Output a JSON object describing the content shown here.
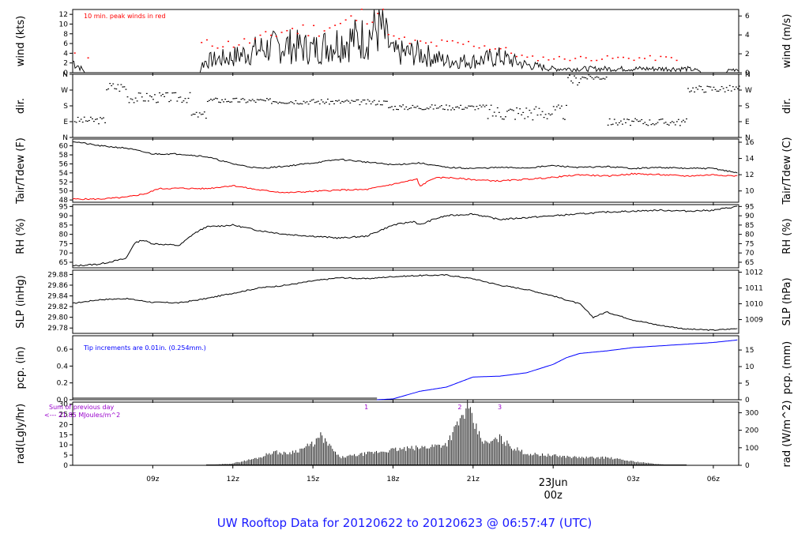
{
  "title": "UW Rooftop Data for 20120622  to  20120623 @ 06:57:47  (UTC)",
  "x_ticks": [
    "09z",
    "12z",
    "15z",
    "18z",
    "21z",
    "00z",
    "03z",
    "06z"
  ],
  "date_marker": {
    "day": "23Jun",
    "hour": "00z",
    "color": "#cc0000"
  },
  "colors": {
    "black": "#000000",
    "red": "#ff0000",
    "blue": "#0000ff",
    "purple": "#9900cc",
    "title": "#1a1aff"
  },
  "panels": {
    "wind": {
      "ylabel_left": "wind (kts)",
      "ylabel_right": "wind (m/s)",
      "note": "10 min. peak winds in red",
      "left_ticks": [
        "0",
        "2",
        "4",
        "6",
        "8",
        "10",
        "12"
      ],
      "right_ticks": [
        "0",
        "2",
        "4",
        "6"
      ]
    },
    "dir": {
      "ylabel_left": "dir.",
      "ylabel_right": "dir.",
      "ticks": [
        "N",
        "E",
        "S",
        "W",
        "N"
      ]
    },
    "temp": {
      "ylabel_left": "Tair/Tdew (F)",
      "ylabel_right": "Tair/Tdew (C)",
      "left_ticks": [
        "48",
        "50",
        "52",
        "54",
        "56",
        "58",
        "60"
      ],
      "right_ticks": [
        "10",
        "12",
        "14",
        "16"
      ]
    },
    "rh": {
      "ylabel_left": "RH (%)",
      "ylabel_right": "RH (%)",
      "left_ticks": [
        "65",
        "70",
        "75",
        "80",
        "85",
        "90",
        "95"
      ],
      "right_ticks": [
        "65",
        "70",
        "75",
        "80",
        "85",
        "90",
        "95"
      ]
    },
    "slp": {
      "ylabel_left": "SLP (inHg)",
      "ylabel_right": "SLP (hPa)",
      "left_ticks": [
        "29.78",
        "29.80",
        "29.82",
        "29.84",
        "29.86",
        "29.88"
      ],
      "right_ticks": [
        "1009",
        "1010",
        "1011",
        "1012"
      ]
    },
    "pcp": {
      "ylabel_left": "pcp. (in)",
      "ylabel_right": "pcp. (mm)",
      "note": "Tip increments are 0.01in. (0.254mm.)",
      "left_ticks": [
        "0.0",
        "0.2",
        "0.4",
        "0.6"
      ],
      "right_ticks": [
        "0",
        "5",
        "10",
        "15"
      ]
    },
    "rad": {
      "ylabel_left": "rad(Lgly/hr)",
      "ylabel_right": "rad (W/m^2)",
      "note1": "Sum of previous day",
      "note2": "<--- 21.85 MJoules/m^2",
      "markers": [
        "1",
        "2",
        "3"
      ],
      "left_ticks": [
        "0",
        "5",
        "10",
        "15",
        "20",
        "25",
        "30"
      ],
      "right_ticks": [
        "0",
        "100",
        "200",
        "300"
      ]
    }
  },
  "chart_data": [
    {
      "type": "line",
      "name": "wind",
      "ylabel": "wind (kts)",
      "ylim": [
        0,
        13
      ],
      "x": [
        6.0,
        6.5,
        7.5,
        9.0,
        10.5,
        11.0,
        12.0,
        13.0,
        14.0,
        15.0,
        16.0,
        17.0,
        17.5,
        18.0,
        19.0,
        20.0,
        21.0,
        22.0,
        23.0,
        24.0,
        25.0,
        26.0,
        27.0,
        28.0,
        29.0,
        30.0,
        30.9
      ],
      "y": [
        3,
        0,
        0,
        0,
        0,
        3,
        4,
        6,
        7,
        6,
        8,
        9,
        12,
        5,
        5,
        3,
        3,
        4,
        2,
        1,
        1,
        1,
        1,
        1,
        1,
        0,
        1
      ]
    },
    {
      "type": "line",
      "name": "wind peak (red)",
      "ylim": [
        0,
        13
      ],
      "x": [
        12.0,
        13.0,
        14.0,
        15.0,
        16.0,
        16.8,
        17.5,
        18.0,
        19.0,
        20.0,
        21.0,
        22.0,
        23.0,
        24.0,
        25.0,
        26.0,
        27.0,
        28.0,
        28.6
      ],
      "y": [
        6,
        7,
        9,
        9,
        10,
        12,
        13,
        7,
        6,
        6,
        6,
        5,
        3,
        3,
        3,
        3,
        3,
        3,
        3
      ]
    },
    {
      "type": "line",
      "name": "Tair",
      "ylabel": "Tair/Tdew (F)",
      "ylim": [
        47.5,
        61.5
      ],
      "x": [
        6.0,
        7.0,
        8.0,
        9.0,
        10.0,
        11.0,
        12.0,
        13.0,
        14.0,
        15.0,
        16.0,
        17.0,
        18.0,
        19.0,
        20.0,
        21.0,
        22.0,
        23.0,
        24.0,
        25.0,
        26.0,
        27.0,
        28.0,
        29.0,
        30.0,
        30.9
      ],
      "y": [
        61,
        60,
        59.5,
        58.2,
        58.2,
        57.6,
        56,
        55,
        55.5,
        56.2,
        57,
        56.4,
        55.8,
        56.2,
        55.2,
        55,
        55.2,
        55.1,
        55.6,
        55.2,
        55.4,
        55,
        55.2,
        55,
        55,
        54
      ]
    },
    {
      "type": "line",
      "name": "Tdew",
      "ylim": [
        47.5,
        61.5
      ],
      "x": [
        6.0,
        7.0,
        8.0,
        8.8,
        9.2,
        10.0,
        11.0,
        12.0,
        13.0,
        14.0,
        15.0,
        16.0,
        17.0,
        18.0,
        18.9,
        19.0,
        19.5,
        20.0,
        21.0,
        22.0,
        23.0,
        24.0,
        25.0,
        26.0,
        27.0,
        28.0,
        29.0,
        30.0,
        30.9
      ],
      "y": [
        48.2,
        48.2,
        48.6,
        49.5,
        50.5,
        50.6,
        50.5,
        51.2,
        50.2,
        49.6,
        49.9,
        50.2,
        50.3,
        51.5,
        52.6,
        51.0,
        52.8,
        53.0,
        52.5,
        52.2,
        52.6,
        53.0,
        53.6,
        53.3,
        53.8,
        53.6,
        53.3,
        53.6,
        53.3
      ]
    },
    {
      "type": "line",
      "name": "RH",
      "ylabel": "RH (%)",
      "ylim": [
        62,
        96
      ],
      "x": [
        6.0,
        7.0,
        8.0,
        8.3,
        8.6,
        9.0,
        10.0,
        10.5,
        11.0,
        12.0,
        13.0,
        14.0,
        15.0,
        16.0,
        17.0,
        18.0,
        18.8,
        19.0,
        19.5,
        20.0,
        21.0,
        22.0,
        23.0,
        24.0,
        25.0,
        26.0,
        27.0,
        28.0,
        29.0,
        30.0,
        30.9
      ],
      "y": [
        63,
        64,
        67,
        75,
        77,
        75,
        74,
        80,
        84,
        85,
        82,
        80,
        79,
        78,
        79,
        85,
        87,
        85,
        88,
        90,
        91,
        88,
        89,
        90,
        91,
        92,
        92.5,
        93,
        92.5,
        93,
        95
      ]
    },
    {
      "type": "line",
      "name": "SLP",
      "ylabel": "SLP (inHg)",
      "ylim": [
        29.77,
        29.888
      ],
      "x": [
        6.0,
        7.0,
        8.0,
        9.0,
        10.0,
        11.0,
        12.0,
        13.0,
        14.0,
        15.0,
        16.0,
        17.0,
        18.0,
        19.0,
        20.0,
        21.0,
        22.0,
        23.0,
        24.0,
        25.0,
        25.5,
        26.0,
        27.0,
        28.0,
        29.0,
        30.0,
        30.9
      ],
      "y": [
        29.826,
        29.833,
        29.835,
        29.828,
        29.827,
        29.835,
        29.845,
        29.855,
        29.86,
        29.868,
        29.874,
        29.872,
        29.876,
        29.878,
        29.879,
        29.872,
        29.86,
        29.852,
        29.84,
        29.825,
        29.8,
        29.81,
        29.795,
        29.785,
        29.778,
        29.776,
        29.779
      ]
    },
    {
      "type": "line",
      "name": "pcp",
      "ylabel": "pcp. (in)",
      "ylim": [
        0,
        0.76
      ],
      "x": [
        6.0,
        17.4,
        18.0,
        19.0,
        20.0,
        21.0,
        22.0,
        23.0,
        24.0,
        24.5,
        25.0,
        26.0,
        27.0,
        28.0,
        29.0,
        30.0,
        30.9
      ],
      "y": [
        0,
        0,
        0.01,
        0.1,
        0.15,
        0.27,
        0.28,
        0.32,
        0.42,
        0.5,
        0.55,
        0.58,
        0.62,
        0.64,
        0.66,
        0.68,
        0.71
      ]
    },
    {
      "type": "area",
      "name": "rad",
      "ylabel": "rad(Lgly/hr)",
      "ylim": [
        0,
        31
      ],
      "x": [
        6.0,
        11.0,
        12.0,
        13.0,
        13.5,
        14.0,
        14.5,
        15.0,
        15.3,
        16.0,
        17.0,
        18.0,
        19.0,
        20.0,
        20.8,
        21.0,
        21.3,
        21.5,
        22.0,
        22.5,
        23.0,
        24.0,
        25.0,
        26.0,
        27.0,
        28.0,
        29.0
      ],
      "y": [
        0,
        0,
        1,
        4,
        7,
        6,
        8,
        11,
        15,
        4,
        6,
        8,
        9,
        11,
        30,
        22,
        14,
        11,
        14,
        9,
        6,
        5,
        4,
        4,
        2,
        0.5,
        0
      ]
    }
  ]
}
